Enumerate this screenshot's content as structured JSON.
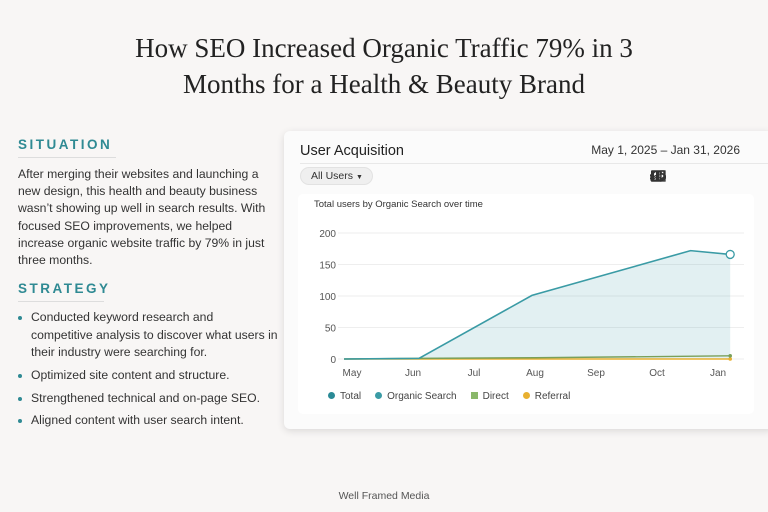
{
  "title_line1": "How SEO Increased Organic Traffic 79% in 3",
  "title_line2": "Months for a Health & Beauty Brand",
  "situation": {
    "heading": "SITUATION",
    "text": "After merging their websites and launching a new design, this health and beauty business wasn’t showing up well in search results. With focused SEO improvements, we helped increase organic website traffic by 79% in just three months."
  },
  "strategy": {
    "heading": "STRATEGY",
    "items": [
      "Conducted keyword research and competitive analysis to discover what users in their industry were searching for.",
      "Optimized site content and structure.",
      "Strengthened technical and on-page SEO.",
      "Aligned content with user search intent."
    ]
  },
  "card": {
    "title": "User Acquisition",
    "date_range": "May 1, 2025 – Jan 31, 2026",
    "filter": "All Users",
    "icons": [
      "comment-icon",
      "compare-icon",
      "insights-icon",
      "share-icon"
    ]
  },
  "chart_data": {
    "type": "area",
    "title": "Total users by Organic Search over time",
    "categories": [
      "May",
      "Jun",
      "Jul",
      "Aug",
      "Sep",
      "Oct",
      "Jan"
    ],
    "yticks": [
      0,
      50,
      100,
      150,
      200
    ],
    "ylim": [
      0,
      200
    ],
    "grid": true,
    "legend_position": "bottom-left",
    "series": [
      {
        "name": "Total",
        "color": "#2a8a96",
        "points": []
      },
      {
        "name": "Organic Search",
        "color": "#3a9ba5",
        "points": [
          [
            -0.13,
            0
          ],
          [
            1.1,
            1
          ],
          [
            2.95,
            101
          ],
          [
            5.55,
            172
          ],
          [
            6.2,
            166
          ]
        ]
      },
      {
        "name": "Direct",
        "color": "#7aa05a",
        "points": [
          [
            -0.13,
            0
          ],
          [
            1.1,
            1
          ],
          [
            3,
            2
          ],
          [
            6.2,
            5
          ]
        ]
      },
      {
        "name": "Referral",
        "color": "#e8b030",
        "points": [
          [
            -0.13,
            0
          ],
          [
            6.2,
            0
          ]
        ]
      }
    ]
  },
  "footer": "Well Framed Media"
}
